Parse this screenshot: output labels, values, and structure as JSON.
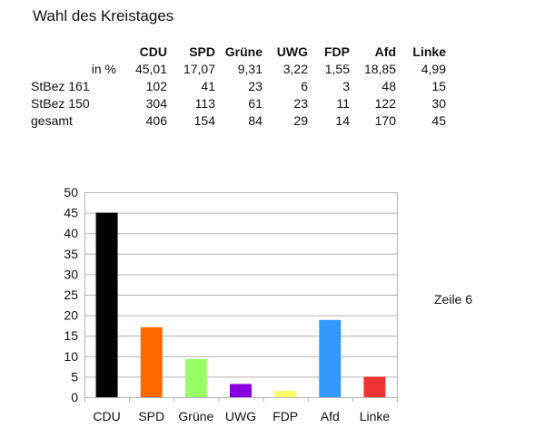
{
  "heading": "Wahl des Kreistages",
  "table": {
    "columns": [
      "CDU",
      "SPD",
      "Grüne",
      "UWG",
      "FDP",
      "Afd",
      "Linke"
    ],
    "rows": [
      {
        "label": "in %",
        "values": [
          "45,01",
          "17,07",
          "9,31",
          "3,22",
          "1,55",
          "18,85",
          "4,99"
        ]
      },
      {
        "label": "StBez 161",
        "values": [
          "102",
          "41",
          "23",
          "6",
          "3",
          "48",
          "15"
        ]
      },
      {
        "label": "StBez 150",
        "values": [
          "304",
          "113",
          "61",
          "23",
          "11",
          "122",
          "30"
        ]
      },
      {
        "label": "gesamt",
        "values": [
          "406",
          "154",
          "84",
          "29",
          "14",
          "170",
          "45"
        ]
      }
    ]
  },
  "chart_data": {
    "type": "bar",
    "title": "",
    "xlabel": "",
    "ylabel": "",
    "categories": [
      "CDU",
      "SPD",
      "Grüne",
      "UWG",
      "FDP",
      "Afd",
      "Linke"
    ],
    "values": [
      45.01,
      17.07,
      9.31,
      3.22,
      1.55,
      18.85,
      4.99
    ],
    "colors": [
      "#000000",
      "#ff6a00",
      "#99ff66",
      "#8800dd",
      "#ffff66",
      "#3399ff",
      "#ee3333"
    ],
    "ylim": [
      0,
      50
    ],
    "yticks": [
      0,
      5,
      10,
      15,
      20,
      25,
      30,
      35,
      40,
      45,
      50
    ],
    "grid": true,
    "gridColor": "#b3b3b3"
  },
  "side_note": "Zeile 6"
}
